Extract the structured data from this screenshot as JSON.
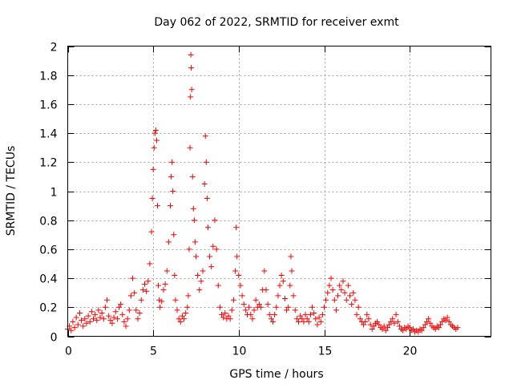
{
  "chart_data": {
    "type": "scatter",
    "title": "Day 062 of 2022, SRMTID for receiver exmt",
    "xlabel": "GPS time / hours",
    "ylabel": "SRMTID / TECUs",
    "xlim": [
      0,
      24.75
    ],
    "ylim": [
      0,
      2
    ],
    "xticks": [
      0,
      5,
      10,
      15,
      20
    ],
    "yticks": [
      0,
      0.2,
      0.4,
      0.6,
      0.8,
      1,
      1.2,
      1.4,
      1.6,
      1.8,
      2
    ],
    "xtick_labels": [
      "0",
      "5",
      "10",
      "15",
      "20"
    ],
    "ytick_labels": [
      "0",
      "0.2",
      "0.4",
      "0.6",
      "0.8",
      "1",
      "1.2",
      "1.4",
      "1.6",
      "1.8",
      "2"
    ],
    "grid": true,
    "marker": "+",
    "color": "#ff0000",
    "series": [
      {
        "name": "SRMTID",
        "points": [
          [
            0.0,
            0.05
          ],
          [
            0.1,
            0.07
          ],
          [
            0.2,
            0.04
          ],
          [
            0.3,
            0.1
          ],
          [
            0.4,
            0.06
          ],
          [
            0.5,
            0.13
          ],
          [
            0.6,
            0.08
          ],
          [
            0.7,
            0.16
          ],
          [
            0.8,
            0.11
          ],
          [
            0.9,
            0.07
          ],
          [
            1.0,
            0.12
          ],
          [
            1.1,
            0.09
          ],
          [
            1.2,
            0.14
          ],
          [
            1.3,
            0.1
          ],
          [
            1.4,
            0.17
          ],
          [
            1.5,
            0.12
          ],
          [
            1.6,
            0.15
          ],
          [
            1.7,
            0.11
          ],
          [
            1.8,
            0.18
          ],
          [
            1.9,
            0.13
          ],
          [
            2.0,
            0.16
          ],
          [
            2.1,
            0.12
          ],
          [
            2.2,
            0.2
          ],
          [
            2.3,
            0.25
          ],
          [
            2.4,
            0.14
          ],
          [
            2.5,
            0.11
          ],
          [
            2.6,
            0.09
          ],
          [
            2.7,
            0.13
          ],
          [
            2.8,
            0.17
          ],
          [
            2.9,
            0.12
          ],
          [
            3.0,
            0.2
          ],
          [
            3.1,
            0.22
          ],
          [
            3.2,
            0.15
          ],
          [
            3.3,
            0.1
          ],
          [
            3.4,
            0.07
          ],
          [
            3.5,
            0.12
          ],
          [
            3.6,
            0.18
          ],
          [
            3.7,
            0.28
          ],
          [
            3.8,
            0.4
          ],
          [
            3.9,
            0.3
          ],
          [
            4.0,
            0.18
          ],
          [
            4.1,
            0.12
          ],
          [
            4.2,
            0.16
          ],
          [
            4.3,
            0.25
          ],
          [
            4.4,
            0.32
          ],
          [
            4.5,
            0.36
          ],
          [
            4.6,
            0.31
          ],
          [
            4.7,
            0.38
          ],
          [
            4.8,
            0.5
          ],
          [
            4.9,
            0.72
          ],
          [
            4.95,
            0.95
          ],
          [
            5.0,
            1.15
          ],
          [
            5.05,
            1.3
          ],
          [
            5.1,
            1.4
          ],
          [
            5.15,
            1.42
          ],
          [
            5.2,
            1.35
          ],
          [
            5.25,
            0.9
          ],
          [
            5.3,
            0.35
          ],
          [
            5.35,
            0.25
          ],
          [
            5.4,
            0.2
          ],
          [
            5.5,
            0.24
          ],
          [
            5.6,
            0.32
          ],
          [
            5.7,
            0.36
          ],
          [
            5.8,
            0.45
          ],
          [
            5.9,
            0.65
          ],
          [
            6.0,
            0.9
          ],
          [
            6.05,
            1.1
          ],
          [
            6.1,
            1.2
          ],
          [
            6.15,
            1.0
          ],
          [
            6.2,
            0.7
          ],
          [
            6.25,
            0.42
          ],
          [
            6.3,
            0.25
          ],
          [
            6.4,
            0.18
          ],
          [
            6.5,
            0.12
          ],
          [
            6.6,
            0.1
          ],
          [
            6.7,
            0.14
          ],
          [
            6.8,
            0.12
          ],
          [
            6.9,
            0.16
          ],
          [
            7.0,
            0.2
          ],
          [
            7.05,
            0.28
          ],
          [
            7.1,
            0.6
          ],
          [
            7.15,
            1.3
          ],
          [
            7.18,
            1.65
          ],
          [
            7.2,
            1.94
          ],
          [
            7.22,
            1.85
          ],
          [
            7.25,
            1.7
          ],
          [
            7.3,
            1.1
          ],
          [
            7.35,
            0.88
          ],
          [
            7.4,
            0.8
          ],
          [
            7.45,
            0.65
          ],
          [
            7.5,
            0.55
          ],
          [
            7.6,
            0.42
          ],
          [
            7.7,
            0.32
          ],
          [
            7.8,
            0.38
          ],
          [
            7.9,
            0.45
          ],
          [
            8.0,
            1.05
          ],
          [
            8.05,
            1.38
          ],
          [
            8.1,
            1.2
          ],
          [
            8.15,
            0.95
          ],
          [
            8.2,
            0.75
          ],
          [
            8.3,
            0.55
          ],
          [
            8.4,
            0.48
          ],
          [
            8.5,
            0.62
          ],
          [
            8.6,
            0.8
          ],
          [
            8.7,
            0.6
          ],
          [
            8.8,
            0.35
          ],
          [
            8.9,
            0.2
          ],
          [
            9.0,
            0.15
          ],
          [
            9.1,
            0.13
          ],
          [
            9.2,
            0.16
          ],
          [
            9.3,
            0.12
          ],
          [
            9.4,
            0.14
          ],
          [
            9.5,
            0.12
          ],
          [
            9.6,
            0.18
          ],
          [
            9.7,
            0.25
          ],
          [
            9.8,
            0.45
          ],
          [
            9.85,
            0.75
          ],
          [
            9.9,
            0.55
          ],
          [
            10.0,
            0.42
          ],
          [
            10.1,
            0.35
          ],
          [
            10.2,
            0.28
          ],
          [
            10.3,
            0.22
          ],
          [
            10.4,
            0.18
          ],
          [
            10.5,
            0.15
          ],
          [
            10.6,
            0.2
          ],
          [
            10.7,
            0.15
          ],
          [
            10.8,
            0.12
          ],
          [
            10.9,
            0.18
          ],
          [
            11.0,
            0.25
          ],
          [
            11.1,
            0.2
          ],
          [
            11.2,
            0.22
          ],
          [
            11.3,
            0.2
          ],
          [
            11.4,
            0.32
          ],
          [
            11.5,
            0.45
          ],
          [
            11.6,
            0.32
          ],
          [
            11.7,
            0.22
          ],
          [
            11.8,
            0.15
          ],
          [
            11.9,
            0.12
          ],
          [
            12.0,
            0.1
          ],
          [
            12.1,
            0.15
          ],
          [
            12.2,
            0.2
          ],
          [
            12.3,
            0.28
          ],
          [
            12.4,
            0.35
          ],
          [
            12.5,
            0.42
          ],
          [
            12.6,
            0.38
          ],
          [
            12.7,
            0.26
          ],
          [
            12.8,
            0.18
          ],
          [
            12.9,
            0.2
          ],
          [
            13.0,
            0.35
          ],
          [
            13.05,
            0.55
          ],
          [
            13.1,
            0.45
          ],
          [
            13.2,
            0.28
          ],
          [
            13.3,
            0.18
          ],
          [
            13.4,
            0.12
          ],
          [
            13.5,
            0.1
          ],
          [
            13.6,
            0.14
          ],
          [
            13.7,
            0.12
          ],
          [
            13.8,
            0.1
          ],
          [
            13.9,
            0.15
          ],
          [
            14.0,
            0.12
          ],
          [
            14.1,
            0.1
          ],
          [
            14.2,
            0.15
          ],
          [
            14.3,
            0.2
          ],
          [
            14.4,
            0.16
          ],
          [
            14.5,
            0.12
          ],
          [
            14.6,
            0.08
          ],
          [
            14.7,
            0.13
          ],
          [
            14.8,
            0.1
          ],
          [
            14.9,
            0.15
          ],
          [
            15.0,
            0.2
          ],
          [
            15.1,
            0.25
          ],
          [
            15.2,
            0.3
          ],
          [
            15.3,
            0.35
          ],
          [
            15.4,
            0.4
          ],
          [
            15.5,
            0.32
          ],
          [
            15.6,
            0.25
          ],
          [
            15.7,
            0.18
          ],
          [
            15.8,
            0.28
          ],
          [
            15.9,
            0.35
          ],
          [
            16.0,
            0.32
          ],
          [
            16.1,
            0.38
          ],
          [
            16.2,
            0.3
          ],
          [
            16.3,
            0.25
          ],
          [
            16.4,
            0.35
          ],
          [
            16.5,
            0.28
          ],
          [
            16.6,
            0.22
          ],
          [
            16.7,
            0.3
          ],
          [
            16.8,
            0.25
          ],
          [
            16.9,
            0.15
          ],
          [
            17.0,
            0.2
          ],
          [
            17.1,
            0.12
          ],
          [
            17.2,
            0.1
          ],
          [
            17.3,
            0.08
          ],
          [
            17.4,
            0.1
          ],
          [
            17.5,
            0.15
          ],
          [
            17.6,
            0.12
          ],
          [
            17.7,
            0.08
          ],
          [
            17.8,
            0.05
          ],
          [
            17.9,
            0.07
          ],
          [
            18.0,
            0.09
          ],
          [
            18.1,
            0.1
          ],
          [
            18.2,
            0.08
          ],
          [
            18.3,
            0.06
          ],
          [
            18.4,
            0.05
          ],
          [
            18.5,
            0.07
          ],
          [
            18.6,
            0.04
          ],
          [
            18.7,
            0.06
          ],
          [
            18.8,
            0.08
          ],
          [
            18.9,
            0.1
          ],
          [
            19.0,
            0.12
          ],
          [
            19.1,
            0.09
          ],
          [
            19.2,
            0.15
          ],
          [
            19.3,
            0.1
          ],
          [
            19.4,
            0.07
          ],
          [
            19.5,
            0.05
          ],
          [
            19.6,
            0.04
          ],
          [
            19.7,
            0.06
          ],
          [
            19.8,
            0.05
          ],
          [
            19.9,
            0.07
          ],
          [
            20.0,
            0.06
          ],
          [
            20.1,
            0.04
          ],
          [
            20.2,
            0.05
          ],
          [
            20.3,
            0.03
          ],
          [
            20.4,
            0.04
          ],
          [
            20.5,
            0.03
          ],
          [
            20.6,
            0.05
          ],
          [
            20.7,
            0.04
          ],
          [
            20.8,
            0.06
          ],
          [
            20.9,
            0.08
          ],
          [
            21.0,
            0.1
          ],
          [
            21.1,
            0.12
          ],
          [
            21.2,
            0.09
          ],
          [
            21.3,
            0.07
          ],
          [
            21.4,
            0.06
          ],
          [
            21.5,
            0.05
          ],
          [
            21.6,
            0.07
          ],
          [
            21.7,
            0.06
          ],
          [
            21.8,
            0.08
          ],
          [
            21.9,
            0.1
          ],
          [
            22.0,
            0.12
          ],
          [
            22.1,
            0.11
          ],
          [
            22.2,
            0.13
          ],
          [
            22.3,
            0.1
          ],
          [
            22.4,
            0.08
          ],
          [
            22.5,
            0.07
          ],
          [
            22.6,
            0.06
          ],
          [
            22.7,
            0.05
          ],
          [
            22.8,
            0.06
          ]
        ]
      }
    ]
  }
}
